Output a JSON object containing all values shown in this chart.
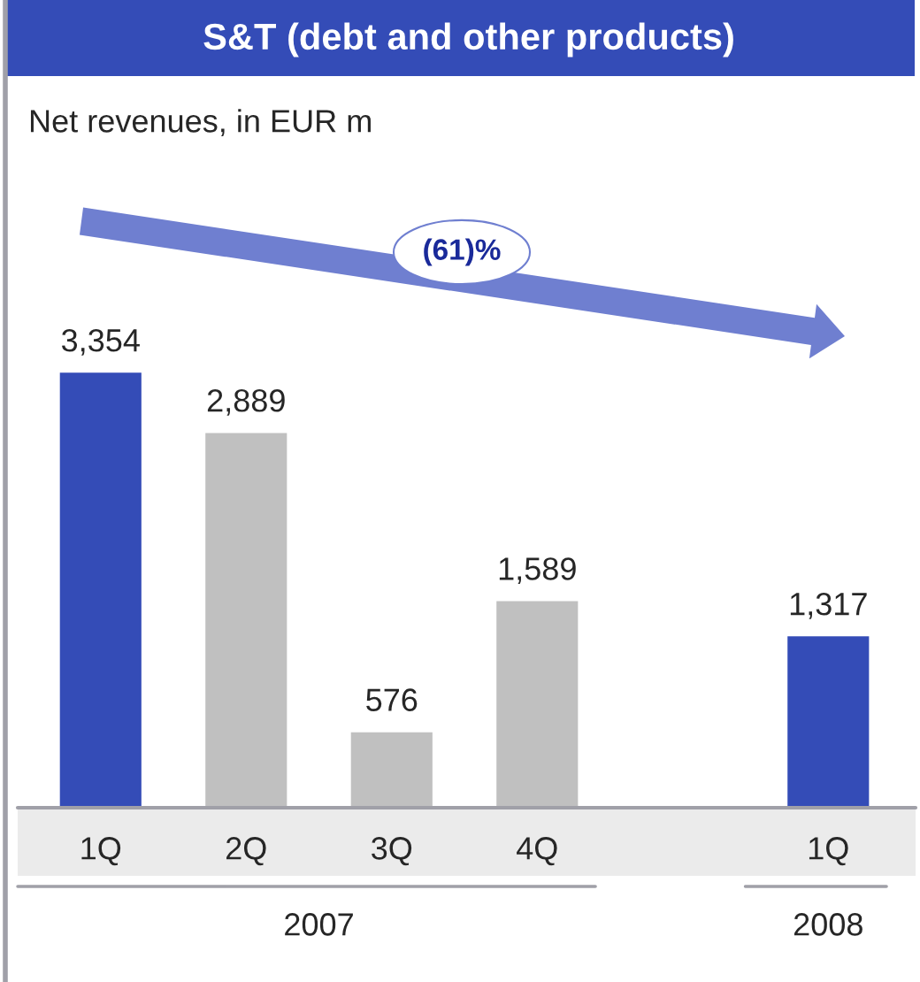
{
  "chart_data": {
    "type": "bar",
    "title": "S&T (debt and other products)",
    "subtitle": "Net revenues, in EUR m",
    "categories": [
      "1Q",
      "2Q",
      "3Q",
      "4Q",
      null,
      "1Q"
    ],
    "values": [
      3354,
      2889,
      576,
      1589,
      null,
      1317
    ],
    "colors": [
      "#344cb7",
      "#c0c0c0",
      "#c0c0c0",
      "#c0c0c0",
      "#c0c0c0",
      "#344cb7"
    ],
    "value_labels": [
      "3,354",
      "2,889",
      "576",
      "1,589",
      null,
      "1,317"
    ],
    "annotations": [
      "(61)%",
      "2007",
      "2008"
    ]
  }
}
